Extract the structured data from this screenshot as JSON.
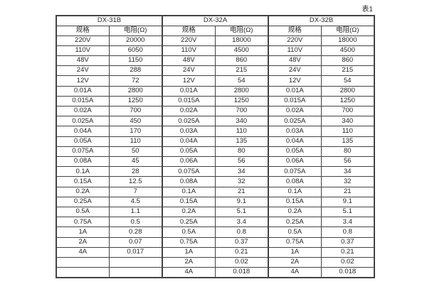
{
  "page_label": "表1",
  "table": {
    "groups": [
      {
        "name": "DX-31B",
        "col_headers": [
          "规格",
          "电阻(Ω)"
        ]
      },
      {
        "name": "DX-32A",
        "col_headers": [
          "规格",
          "电阻(Ω)"
        ]
      },
      {
        "name": "DX-32B",
        "col_headers": [
          "规格",
          "电阻(Ω)"
        ]
      }
    ],
    "rows": [
      [
        "220V",
        "20000",
        "220V",
        "18000",
        "220V",
        "18000"
      ],
      [
        "110V",
        "6050",
        "110V",
        "4500",
        "110V",
        "4500"
      ],
      [
        "48V",
        "1150",
        "48V",
        "860",
        "48V",
        "860"
      ],
      [
        "24V",
        "288",
        "24V",
        "215",
        "24V",
        "215"
      ],
      [
        "12V",
        "72",
        "12V",
        "54",
        "12V",
        "54"
      ],
      [
        "0.01A",
        "2800",
        "0.01A",
        "2800",
        "0.01A",
        "2800"
      ],
      [
        "0.015A",
        "1250",
        "0.015A",
        "1250",
        "0.015A",
        "1250"
      ],
      [
        "0.02A",
        "700",
        "0.02A",
        "700",
        "0.02A",
        "700"
      ],
      [
        "0.025A",
        "450",
        "0.025A",
        "340",
        "0.025A",
        "340"
      ],
      [
        "0.04A",
        "170",
        "0.03A",
        "110",
        "0.03A",
        "110"
      ],
      [
        "0.05A",
        "110",
        "0.04A",
        "135",
        "0.04A",
        "135"
      ],
      [
        "0.075A",
        "50",
        "0.05A",
        "80",
        "0.05A",
        "80"
      ],
      [
        "0.08A",
        "45",
        "0.06A",
        "56",
        "0.06A",
        "56"
      ],
      [
        "0.1A",
        "28",
        "0.075A",
        "34",
        "0.075A",
        "34"
      ],
      [
        "0.15A",
        "12.5",
        "0.08A",
        "32",
        "0.08A",
        "32"
      ],
      [
        "0.2A",
        "7",
        "0.1A",
        "21",
        "0.1A",
        "21"
      ],
      [
        "0.25A",
        "4.5",
        "0.15A",
        "9.1",
        "0.15A",
        "9.1"
      ],
      [
        "0.5A",
        "1.1",
        "0.2A",
        "5.1",
        "0.2A",
        "5.1"
      ],
      [
        "0.75A",
        "0.5",
        "0.25A",
        "3.4",
        "0.25A",
        "3.4"
      ],
      [
        "1A",
        "0.28",
        "0.5A",
        "0.8",
        "0.5A",
        "0.8"
      ],
      [
        "2A",
        "0.07",
        "0.75A",
        "0.37",
        "0.75A",
        "0.37"
      ],
      [
        "4A",
        "0.017",
        "1A",
        "0.21",
        "1A",
        "0.21"
      ],
      [
        "",
        "",
        "2A",
        "0.02",
        "2A",
        "0.02"
      ],
      [
        "",
        "",
        "4A",
        "0.018",
        "4A",
        "0.018"
      ]
    ]
  },
  "colors": {
    "border": "#434343",
    "text": "#262626",
    "background": "#ffffff"
  }
}
